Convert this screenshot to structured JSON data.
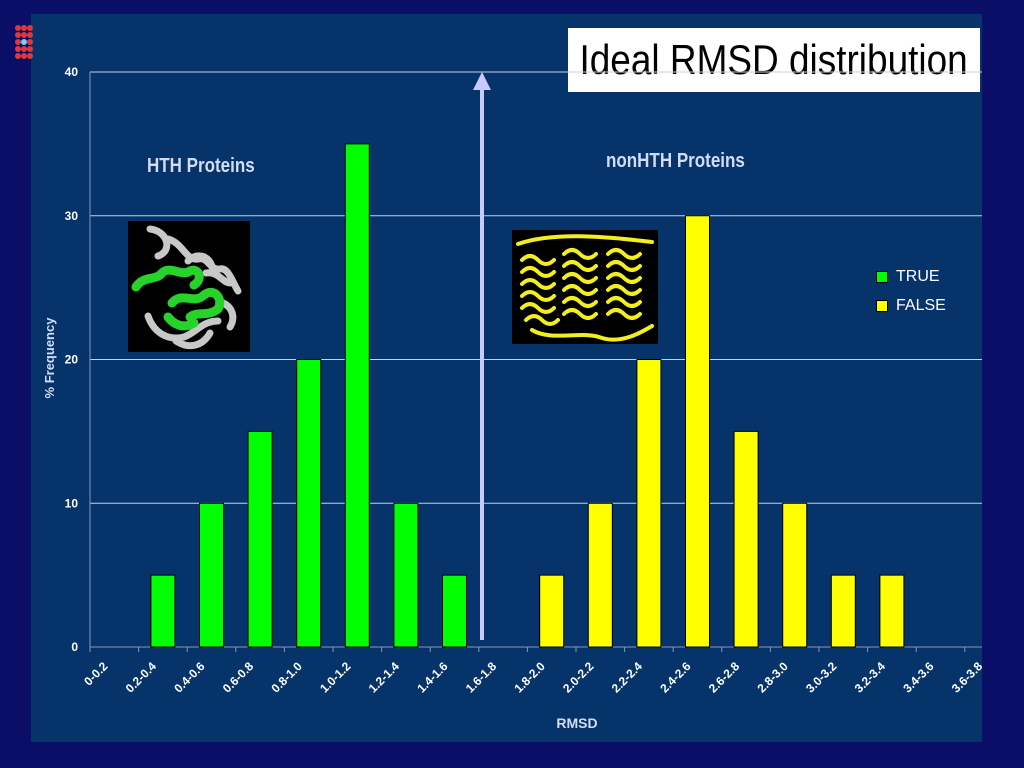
{
  "slide": {
    "title": "Ideal RMSD distribution",
    "annotations": {
      "hth": "HTH Proteins",
      "nonhth": "nonHTH Proteins"
    },
    "images": {
      "hth": "hth-protein-structure",
      "nonhth": "nonhth-protein-structure"
    },
    "colors": {
      "background": "#0b0e66",
      "panel": "#06346a",
      "true": "#00ff00",
      "false": "#ffff00",
      "arrow": "#c9c9ff"
    }
  },
  "chart_data": {
    "type": "bar",
    "title": "",
    "xlabel": "RMSD",
    "ylabel": "% Frequency",
    "ylim": [
      0,
      40
    ],
    "yticks": [
      0,
      10,
      20,
      30,
      40
    ],
    "grid": true,
    "legend_position": "right",
    "categories": [
      "0-0.2",
      "0.2-0.4",
      "0.4-0.6",
      "0.6-0.8",
      "0.8-1.0",
      "1.0-1.2",
      "1.2-1.4",
      "1.4-1.6",
      "1.6-1.8",
      "1.8-2.0",
      "2.0-2.2",
      "2.2-2.4",
      "2.4-2.6",
      "2.6-2.8",
      "2.8-3.0",
      "3.0-3.2",
      "3.2-3.4",
      "3.4-3.6",
      "3.6-3.8"
    ],
    "series": [
      {
        "name": "TRUE",
        "color": "#00ff00",
        "values": [
          0,
          5,
          10,
          15,
          20,
          35,
          10,
          5,
          0,
          0,
          0,
          0,
          0,
          0,
          0,
          0,
          0,
          0,
          0
        ]
      },
      {
        "name": "FALSE",
        "color": "#ffff00",
        "values": [
          0,
          0,
          0,
          0,
          0,
          0,
          0,
          0,
          0,
          5,
          10,
          20,
          30,
          15,
          10,
          5,
          5,
          0,
          0
        ]
      }
    ]
  }
}
